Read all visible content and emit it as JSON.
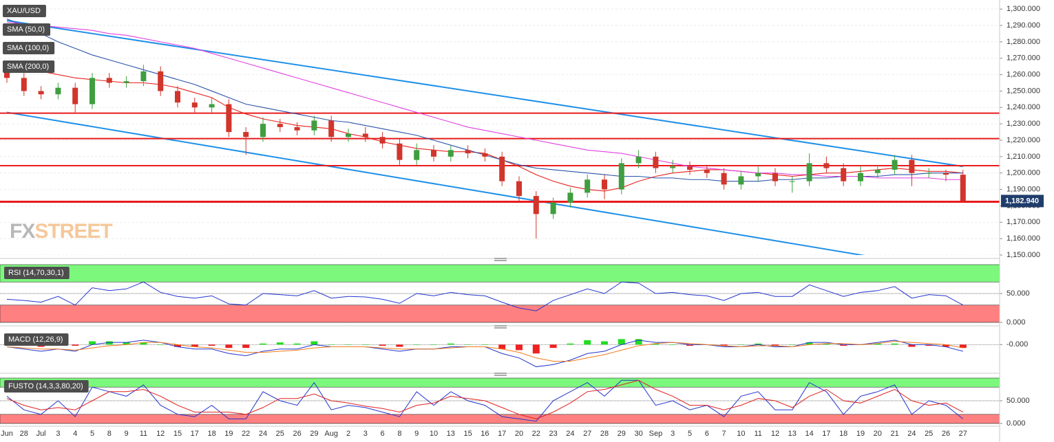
{
  "chart_data": [
    {
      "type": "candlestick",
      "name": "XAU/USD",
      "categories": [
        "Jun",
        "28",
        "Jul",
        "3",
        "4",
        "5",
        "8",
        "9",
        "11",
        "12",
        "15",
        "17",
        "18",
        "19",
        "22",
        "24",
        "25",
        "26",
        "29",
        "Aug",
        "2",
        "3",
        "6",
        "8",
        "9",
        "10",
        "13",
        "15",
        "16",
        "17",
        "20",
        "22",
        "23",
        "24",
        "27",
        "28",
        "29",
        "30",
        "Sep",
        "3",
        "5",
        "6",
        "7",
        "10",
        "11",
        "12",
        "13",
        "14",
        "17",
        "18",
        "19",
        "20",
        "21",
        "24",
        "25",
        "26",
        "27"
      ],
      "open": [
        1262,
        1258,
        1250,
        1248,
        1252,
        1242,
        1258,
        1255,
        1256,
        1262,
        1250,
        1243,
        1240,
        1242,
        1225,
        1222,
        1230,
        1228,
        1226,
        1232,
        1222,
        1224,
        1222,
        1218,
        1208,
        1214,
        1210,
        1214,
        1212,
        1210,
        1195,
        1186,
        1175,
        1182,
        1188,
        1196,
        1190,
        1206,
        1210,
        1203,
        1204,
        1202,
        1200,
        1193,
        1198,
        1200,
        1195,
        1195,
        1206,
        1203,
        1195,
        1200,
        1202,
        1208,
        1200,
        1200,
        1199
      ],
      "high": [
        1265,
        1261,
        1253,
        1255,
        1255,
        1261,
        1261,
        1259,
        1266,
        1265,
        1253,
        1246,
        1246,
        1245,
        1228,
        1234,
        1233,
        1231,
        1235,
        1235,
        1227,
        1228,
        1225,
        1221,
        1218,
        1217,
        1217,
        1217,
        1215,
        1213,
        1198,
        1189,
        1185,
        1191,
        1199,
        1199,
        1209,
        1214,
        1213,
        1208,
        1207,
        1205,
        1203,
        1201,
        1204,
        1203,
        1198,
        1212,
        1210,
        1206,
        1204,
        1205,
        1211,
        1211,
        1203,
        1202,
        1202
      ],
      "low": [
        1255,
        1247,
        1245,
        1245,
        1237,
        1239,
        1252,
        1252,
        1253,
        1247,
        1240,
        1237,
        1237,
        1222,
        1211,
        1219,
        1225,
        1223,
        1223,
        1219,
        1219,
        1219,
        1215,
        1205,
        1205,
        1207,
        1207,
        1209,
        1207,
        1192,
        1183,
        1160,
        1172,
        1179,
        1185,
        1184,
        1187,
        1203,
        1200,
        1200,
        1199,
        1197,
        1190,
        1190,
        1195,
        1192,
        1188,
        1192,
        1200,
        1192,
        1192,
        1197,
        1199,
        1192,
        1197,
        1195,
        1183
      ],
      "close": [
        1258,
        1250,
        1248,
        1252,
        1242,
        1258,
        1255,
        1256,
        1262,
        1250,
        1243,
        1240,
        1242,
        1225,
        1222,
        1230,
        1228,
        1226,
        1232,
        1222,
        1224,
        1222,
        1218,
        1208,
        1214,
        1210,
        1214,
        1212,
        1210,
        1195,
        1186,
        1175,
        1182,
        1188,
        1196,
        1190,
        1206,
        1210,
        1203,
        1204,
        1202,
        1200,
        1193,
        1198,
        1200,
        1195,
        1195,
        1206,
        1203,
        1195,
        1200,
        1202,
        1208,
        1200,
        1200,
        1199,
        1183
      ],
      "up_color": "#3f9e3f",
      "down_color": "#d1352b",
      "series": [
        {
          "name": "SMA (50,0)",
          "color": "#e8201a",
          "values": [
            1266,
            1264,
            1262,
            1260,
            1258,
            1257,
            1256,
            1255,
            1255,
            1254,
            1252,
            1249,
            1246,
            1240,
            1236,
            1233,
            1231,
            1229,
            1228,
            1227,
            1224,
            1222,
            1219,
            1217,
            1215,
            1214,
            1213,
            1213,
            1212,
            1208,
            1204,
            1199,
            1195,
            1192,
            1190,
            1189,
            1191,
            1195,
            1198,
            1200,
            1201,
            1202,
            1202,
            1201,
            1200,
            1199,
            1198,
            1199,
            1200,
            1200,
            1201,
            1202,
            1203,
            1202,
            1201,
            1201,
            1200
          ]
        },
        {
          "name": "SMA (100,0)",
          "color": "#2a52a8",
          "values": [
            1294,
            1290,
            1285,
            1280,
            1276,
            1272,
            1269,
            1266,
            1263,
            1260,
            1257,
            1254,
            1250,
            1246,
            1242,
            1240,
            1238,
            1236,
            1234,
            1232,
            1231,
            1229,
            1227,
            1225,
            1223,
            1220,
            1217,
            1214,
            1211,
            1208,
            1205,
            1203,
            1202,
            1201,
            1200,
            1199,
            1198,
            1198,
            1197,
            1197,
            1196,
            1196,
            1195,
            1195,
            1195,
            1196,
            1196,
            1197,
            1197,
            1198,
            1198,
            1198,
            1199,
            1199,
            1200,
            1200,
            1200
          ]
        },
        {
          "name": "SMA (200,0)",
          "color": "#e040e0",
          "values": [
            1292,
            1291,
            1290,
            1289,
            1288,
            1287,
            1285,
            1284,
            1282,
            1280,
            1278,
            1276,
            1273,
            1270,
            1267,
            1264,
            1261,
            1258,
            1255,
            1252,
            1249,
            1246,
            1243,
            1240,
            1237,
            1234,
            1231,
            1228,
            1226,
            1224,
            1222,
            1220,
            1218,
            1216,
            1214,
            1213,
            1212,
            1210,
            1208,
            1206,
            1204,
            1203,
            1202,
            1201,
            1200,
            1200,
            1199,
            1199,
            1198,
            1198,
            1198,
            1197,
            1197,
            1197,
            1197,
            1196,
            1196
          ]
        }
      ],
      "trend_lines": [
        {
          "start": 1293,
          "end": 1204,
          "color": "#1e90e8"
        },
        {
          "start": 1237,
          "end": 1139.6,
          "color": "#1e90e8"
        }
      ],
      "levels": [
        1236.5,
        1221,
        1204.5,
        1182.5
      ],
      "level_color": "#e81a1a",
      "last_price": {
        "value": 1182.94,
        "label": "1,182.940"
      },
      "watermark": {
        "prefix": "FX",
        "suffix": "STREET"
      },
      "ylim": [
        1150,
        1303
      ],
      "yticks": [
        {
          "value": 1150,
          "label": "1,150.000"
        },
        {
          "value": 1160,
          "label": "1,160.000"
        },
        {
          "value": 1170,
          "label": "1,170.000"
        },
        {
          "value": 1180,
          "label": "1,180.000"
        },
        {
          "value": 1190,
          "label": "1,190.000"
        },
        {
          "value": 1200,
          "label": "1,200.000"
        },
        {
          "value": 1210,
          "label": "1,210.000"
        },
        {
          "value": 1220,
          "label": "1,220.000"
        },
        {
          "value": 1230,
          "label": "1,230.000"
        },
        {
          "value": 1240,
          "label": "1,240.000"
        },
        {
          "value": 1250,
          "label": "1,250.000"
        },
        {
          "value": 1260,
          "label": "1,260.000"
        },
        {
          "value": 1270,
          "label": "1,270.000"
        },
        {
          "value": 1280,
          "label": "1,280.000"
        },
        {
          "value": 1290,
          "label": "1,290.000"
        },
        {
          "value": 1300,
          "label": "1,300.000"
        }
      ],
      "grid": true
    },
    {
      "type": "line",
      "name": "RSI (14,70,30,1)",
      "series": [
        {
          "color": "#2233cc",
          "values": [
            40,
            38,
            35,
            45,
            30,
            60,
            55,
            58,
            70,
            52,
            45,
            42,
            46,
            32,
            30,
            50,
            48,
            46,
            55,
            42,
            45,
            44,
            40,
            33,
            50,
            46,
            52,
            48,
            46,
            35,
            25,
            20,
            38,
            48,
            58,
            50,
            70,
            68,
            50,
            52,
            48,
            46,
            38,
            50,
            52,
            45,
            45,
            65,
            55,
            45,
            52,
            55,
            62,
            42,
            48,
            46,
            30
          ]
        }
      ],
      "bands": [
        {
          "from": 70,
          "to": 100,
          "color": "#7cf87c"
        },
        {
          "from": 0,
          "to": 30,
          "color": "#ff8080"
        }
      ],
      "ylim": [
        0,
        100
      ],
      "yticks": [
        {
          "value": 0,
          "label": "0.000"
        },
        {
          "value": 50,
          "label": "50.000"
        }
      ],
      "grid": true
    },
    {
      "type": "macd",
      "name": "MACD (12,26,9)",
      "series": [
        {
          "color": "#2233cc",
          "values": [
            -1,
            -2,
            -3,
            -2,
            -3,
            0,
            1,
            1,
            2,
            1,
            -1,
            -2,
            -2,
            -4,
            -5,
            -3,
            -2,
            -2,
            0,
            -1,
            -1,
            -1,
            -2,
            -3,
            -2,
            -2,
            -1,
            -1,
            -1,
            -4,
            -6,
            -10,
            -9,
            -7,
            -4,
            -3,
            0,
            2,
            1,
            1,
            0,
            0,
            -1,
            -1,
            0,
            -1,
            -1,
            1,
            1,
            0,
            0,
            1,
            2,
            0,
            0,
            -1,
            -3
          ]
        },
        {
          "color": "#f07a1a",
          "values": [
            -1,
            -1.5,
            -2,
            -2,
            -2.5,
            -1.5,
            -0.5,
            0,
            1,
            1,
            0,
            -1,
            -1.5,
            -2.5,
            -3.5,
            -3.5,
            -3,
            -2.5,
            -1.5,
            -1,
            -1,
            -1,
            -1.5,
            -2,
            -2,
            -2,
            -1.5,
            -1,
            -1,
            -2,
            -3.5,
            -6,
            -7.5,
            -7.5,
            -6,
            -4.5,
            -2.5,
            -0.5,
            0.5,
            1,
            0.5,
            0,
            -0.5,
            -1,
            -0.5,
            -0.5,
            -1,
            0,
            0.5,
            0.5,
            0,
            0.5,
            1.5,
            1,
            0.5,
            0,
            -1.5
          ]
        }
      ],
      "histogram": [
        0,
        -0.5,
        -1,
        0,
        -0.5,
        1.5,
        1.5,
        1,
        1,
        0,
        -1,
        -1,
        -0.5,
        -1.5,
        -1.5,
        0.5,
        1,
        0.5,
        1.5,
        0,
        0,
        0,
        -0.5,
        -1,
        0,
        0,
        0.5,
        0,
        0,
        -2,
        -2.5,
        -4,
        -1.5,
        0.5,
        2,
        1.5,
        2.5,
        2.5,
        0.5,
        0,
        -0.5,
        0,
        -0.5,
        0,
        0.5,
        -0.5,
        0,
        1,
        0.5,
        -0.5,
        0,
        0.5,
        0.5,
        -1,
        -0.5,
        -1,
        -1.5
      ],
      "up_color": "#22dd22",
      "down_color": "#ee2222",
      "ylim": [
        -12,
        6
      ],
      "yticks": [
        {
          "value": 0,
          "label": "-0.000"
        }
      ],
      "grid": true
    },
    {
      "type": "line",
      "name": "FUSTO (14,3,3,80,20)",
      "series": [
        {
          "color": "#2233cc",
          "values": [
            60,
            30,
            20,
            50,
            15,
            80,
            70,
            60,
            85,
            40,
            20,
            15,
            40,
            10,
            10,
            70,
            50,
            40,
            90,
            30,
            40,
            35,
            25,
            15,
            70,
            40,
            70,
            50,
            40,
            15,
            10,
            5,
            50,
            70,
            90,
            60,
            95,
            95,
            40,
            50,
            30,
            40,
            15,
            60,
            70,
            30,
            30,
            90,
            70,
            20,
            60,
            70,
            85,
            20,
            50,
            40,
            10
          ]
        },
        {
          "color": "#e02020",
          "values": [
            55,
            40,
            30,
            35,
            30,
            50,
            70,
            70,
            75,
            60,
            40,
            25,
            25,
            25,
            20,
            35,
            55,
            55,
            65,
            50,
            45,
            38,
            33,
            25,
            40,
            45,
            60,
            55,
            50,
            35,
            20,
            10,
            25,
            45,
            70,
            75,
            85,
            95,
            75,
            60,
            40,
            40,
            30,
            40,
            55,
            50,
            35,
            60,
            75,
            50,
            45,
            60,
            75,
            50,
            40,
            45,
            25
          ]
        }
      ],
      "bands": [
        {
          "from": 80,
          "to": 100,
          "color": "#7cf87c"
        },
        {
          "from": 0,
          "to": 20,
          "color": "#ff8080"
        }
      ],
      "ylim": [
        0,
        100
      ],
      "yticks": [
        {
          "value": 0,
          "label": "0.000"
        },
        {
          "value": 50,
          "label": "50.000"
        }
      ],
      "grid": true
    }
  ]
}
